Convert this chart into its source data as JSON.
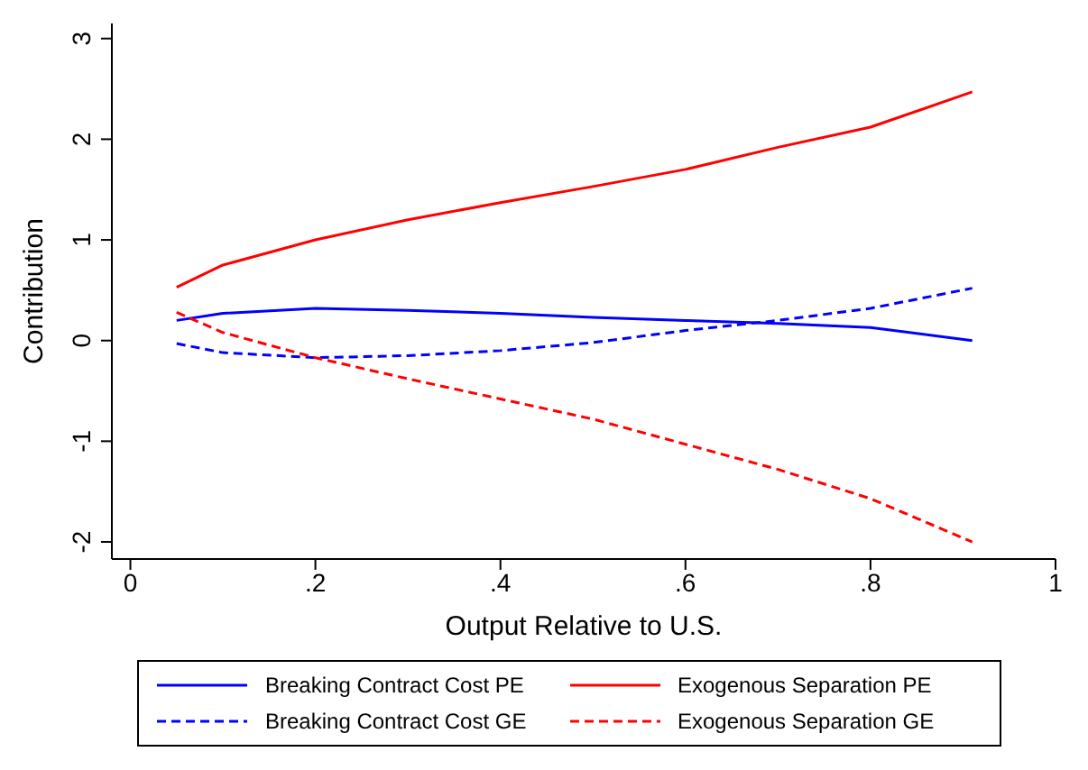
{
  "chart_data": {
    "type": "line",
    "xlabel": "Output Relative to U.S.",
    "ylabel": "Contribution",
    "x": [
      0.05,
      0.1,
      0.2,
      0.3,
      0.4,
      0.5,
      0.6,
      0.7,
      0.8,
      0.91
    ],
    "series": [
      {
        "name": "Breaking Contract Cost PE",
        "color": "#0000ff",
        "line_style": "solid",
        "values": [
          0.2,
          0.27,
          0.32,
          0.3,
          0.27,
          0.23,
          0.2,
          0.17,
          0.13,
          0
        ]
      },
      {
        "name": "Exogenous Separation PE",
        "color": "#ff0000",
        "line_style": "solid",
        "values": [
          0.53,
          0.75,
          1.0,
          1.2,
          1.37,
          1.53,
          1.7,
          1.92,
          2.12,
          2.47
        ]
      },
      {
        "name": "Breaking Contract Cost GE",
        "color": "#0000ff",
        "line_style": "dashed",
        "values": [
          -0.03,
          -0.12,
          -0.17,
          -0.15,
          -0.1,
          -0.02,
          0.1,
          0.2,
          0.32,
          0.52
        ]
      },
      {
        "name": "Exogenous Separation GE",
        "color": "#ff0000",
        "line_style": "dashed",
        "values": [
          0.28,
          0.08,
          -0.17,
          -0.38,
          -0.58,
          -0.78,
          -1.03,
          -1.28,
          -1.57,
          -2.0
        ]
      }
    ],
    "xlim": [
      -0.02,
      1
    ],
    "xticks": [
      {
        "value": 0,
        "label": "0"
      },
      {
        "value": 0.2,
        "label": ".2"
      },
      {
        "value": 0.4,
        "label": ".4"
      },
      {
        "value": 0.6,
        "label": ".6"
      },
      {
        "value": 0.8,
        "label": ".8"
      },
      {
        "value": 1,
        "label": "1"
      }
    ],
    "ylim": [
      -2.17,
      3.15
    ],
    "yticks": [
      -2,
      -1,
      0,
      1,
      2,
      3
    ],
    "grid": false,
    "legend": "bottom",
    "marker": "none"
  }
}
